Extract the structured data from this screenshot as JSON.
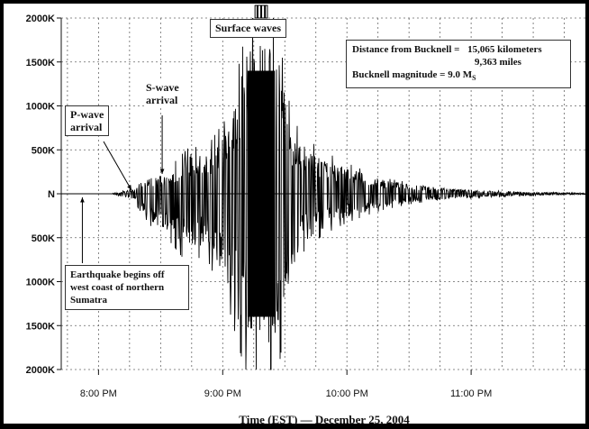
{
  "chart_data": {
    "type": "line",
    "xlabel": "Time (EST) — December 25, 2004",
    "ylabel": "",
    "y_tick_labels": [
      "2000K",
      "1500K",
      "1000K",
      "500K",
      "N",
      "500K",
      "1000K",
      "1500K",
      "2000K"
    ],
    "y_tick_values": [
      2000,
      1500,
      1000,
      500,
      0,
      -500,
      -1000,
      -1500,
      -2000
    ],
    "ylim": [
      -2000,
      2000
    ],
    "x_tick_labels": [
      "8:00 PM",
      "9:00 PM",
      "10:00 PM",
      "11:00 PM"
    ],
    "x_tick_values": [
      20.0,
      21.0,
      22.0,
      23.0
    ],
    "xlim": [
      19.7,
      23.92
    ],
    "grid": true,
    "envelope_series": {
      "name": "",
      "x": [
        19.7,
        20.1,
        20.28,
        20.36,
        20.45,
        20.55,
        20.65,
        20.75,
        20.85,
        20.95,
        21.05,
        21.12,
        21.18,
        21.22,
        21.26,
        21.3,
        21.34,
        21.38,
        21.42,
        21.46,
        21.5,
        21.55,
        21.62,
        21.7,
        21.8,
        21.9,
        22.0,
        22.15,
        22.3,
        22.5,
        22.7,
        22.9,
        23.1,
        23.3,
        23.5,
        23.7,
        23.92
      ],
      "upper": [
        0,
        0,
        60,
        180,
        220,
        260,
        420,
        560,
        480,
        700,
        900,
        1400,
        1800,
        2000,
        2000,
        2000,
        2000,
        2000,
        2000,
        1800,
        1300,
        950,
        700,
        600,
        500,
        420,
        350,
        260,
        180,
        130,
        90,
        60,
        40,
        30,
        20,
        15,
        10
      ],
      "lower": [
        0,
        0,
        -70,
        -250,
        -420,
        -500,
        -680,
        -850,
        -650,
        -1000,
        -1300,
        -1700,
        -2000,
        -2000,
        -2000,
        -2000,
        -2000,
        -2000,
        -2000,
        -1900,
        -1500,
        -1100,
        -700,
        -600,
        -480,
        -400,
        -330,
        -250,
        -180,
        -120,
        -80,
        -55,
        -40,
        -30,
        -20,
        -15,
        -10
      ]
    },
    "annotations": {
      "p_wave": {
        "text": "P-wave arrival",
        "x": 20.28
      },
      "s_wave": {
        "text": "S-wave arrival",
        "x": 20.52
      },
      "surface": {
        "text": "Surface waves",
        "x": 21.35
      },
      "onset": {
        "text": "Earthquake begins off west coast of northern Sumatra",
        "x": 19.87
      }
    }
  },
  "info": {
    "distance_label": "Distance from Bucknell =",
    "distance_km": "15,065 kilometers",
    "distance_mi": "9,363 miles",
    "magnitude_label": "Bucknell magnitude = 9.0 M",
    "magnitude_sub": "S"
  },
  "labels": {
    "p_wave_line1": "P-wave",
    "p_wave_line2": "arrival",
    "s_wave_line1": "S-wave",
    "s_wave_line2": "arrival",
    "surface": "Surface waves",
    "onset_line1": "Earthquake begins off",
    "onset_line2": "west coast of northern",
    "onset_line3": "Sumatra"
  }
}
